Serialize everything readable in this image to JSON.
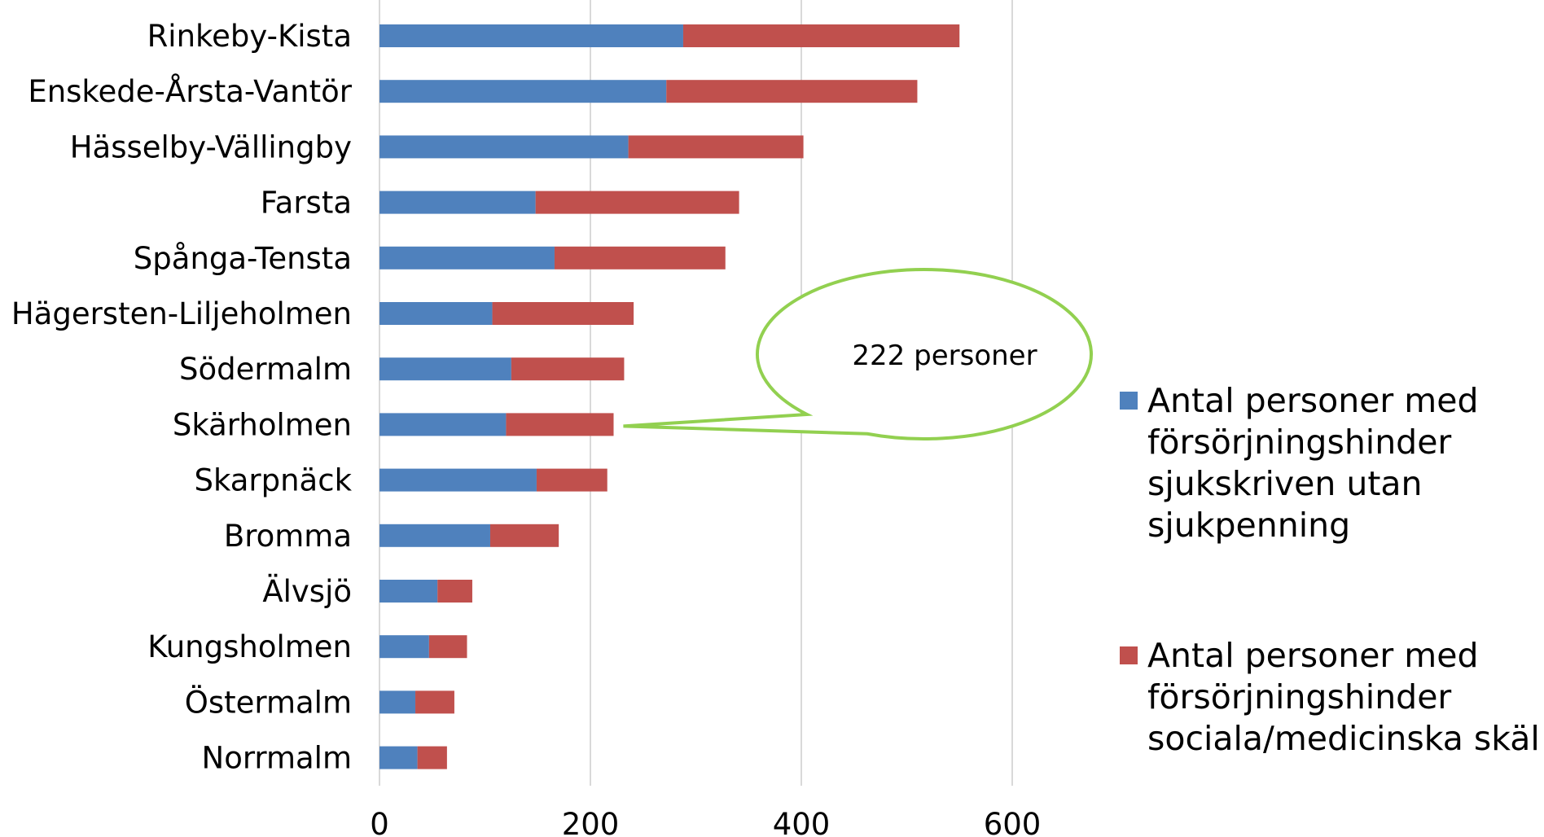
{
  "chart_data": {
    "type": "bar",
    "orientation": "horizontal",
    "stacked": true,
    "categories": [
      "Rinkeby-Kista",
      "Enskede-Årsta-Vantör",
      "Hässelby-Vällingby",
      "Farsta",
      "Spånga-Tensta",
      "Hägersten-Liljeholmen",
      "Södermalm",
      "Skärholmen",
      "Skarpnäck",
      "Bromma",
      "Älvsjö",
      "Kungsholmen",
      "Östermalm",
      "Norrmalm"
    ],
    "series": [
      {
        "name": "Antal personer med försörjningshinder sjukskriven utan sjukpenning",
        "color": "#4f81bd",
        "values": [
          288,
          272,
          236,
          148,
          166,
          107,
          125,
          120,
          149,
          105,
          55,
          47,
          34,
          36
        ]
      },
      {
        "name": "Antal personer med försörjningshinder sociala/medicinska skäl",
        "color": "#c0504d",
        "values": [
          262,
          238,
          166,
          193,
          162,
          134,
          107,
          102,
          67,
          65,
          33,
          36,
          37,
          28
        ]
      }
    ],
    "xlim": [
      0,
      700
    ],
    "xticks": [
      0,
      200,
      400,
      600
    ],
    "grid": true,
    "legend": "right",
    "annotation": {
      "text": "222 personer",
      "category": "Skärholmen",
      "value": 222,
      "color": "#92d050"
    }
  }
}
